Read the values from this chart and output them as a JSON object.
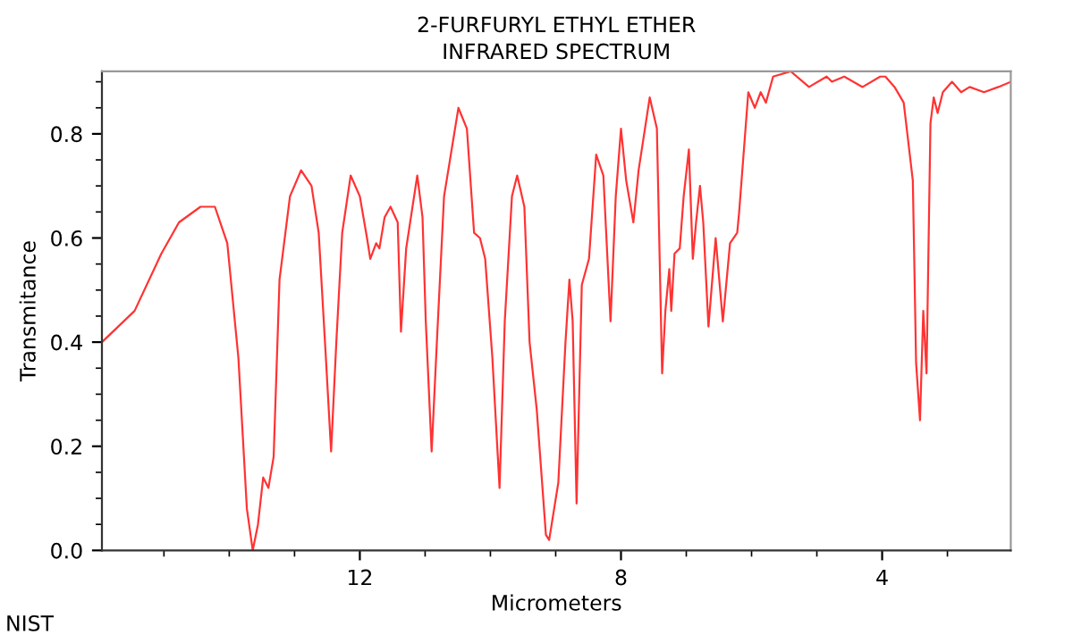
{
  "chart_data": {
    "type": "line",
    "title": "2-FURFURYL ETHYL ETHER\nINFRARED SPECTRUM",
    "xlabel": "Micrometers",
    "ylabel": "Transmitance",
    "annotations": [
      "NIST"
    ],
    "series": [
      {
        "color": "#ff3333",
        "x": [
          15.95,
          15.45,
          15.04,
          14.77,
          14.44,
          14.22,
          14.03,
          13.86,
          13.73,
          13.64,
          13.56,
          13.48,
          13.4,
          13.32,
          13.23,
          13.07,
          12.9,
          12.74,
          12.63,
          12.52,
          12.44,
          12.36,
          12.27,
          12.14,
          12.0,
          11.89,
          11.84,
          11.75,
          11.7,
          11.62,
          11.53,
          11.42,
          11.37,
          11.29,
          11.12,
          11.04,
          10.99,
          10.9,
          10.82,
          10.71,
          10.49,
          10.36,
          10.25,
          10.16,
          10.08,
          9.97,
          9.86,
          9.78,
          9.67,
          9.59,
          9.48,
          9.4,
          9.29,
          9.15,
          9.1,
          8.96,
          8.85,
          8.79,
          8.74,
          8.68,
          8.6,
          8.49,
          8.38,
          8.27,
          8.16,
          8.08,
          8.0,
          7.92,
          7.81,
          7.73,
          7.56,
          7.45,
          7.37,
          7.32,
          7.26,
          7.23,
          7.18,
          7.1,
          7.04,
          6.96,
          6.9,
          6.85,
          6.79,
          6.74,
          6.66,
          6.55,
          6.44,
          6.33,
          6.22,
          6.19,
          6.05,
          5.95,
          5.86,
          5.78,
          5.67,
          5.4,
          5.12,
          4.85,
          4.77,
          4.58,
          4.3,
          4.03,
          3.95,
          3.81,
          3.67,
          3.53,
          3.48,
          3.42,
          3.37,
          3.32,
          3.26,
          3.21,
          3.15,
          3.07,
          2.93,
          2.79,
          2.66,
          2.44,
          2.22,
          2.03
        ],
        "values": [
          0.4,
          0.46,
          0.57,
          0.63,
          0.66,
          0.66,
          0.59,
          0.37,
          0.08,
          0.0,
          0.05,
          0.14,
          0.12,
          0.18,
          0.52,
          0.68,
          0.73,
          0.7,
          0.61,
          0.37,
          0.19,
          0.4,
          0.61,
          0.72,
          0.68,
          0.6,
          0.56,
          0.59,
          0.58,
          0.64,
          0.66,
          0.63,
          0.42,
          0.58,
          0.72,
          0.64,
          0.44,
          0.19,
          0.4,
          0.68,
          0.85,
          0.81,
          0.61,
          0.6,
          0.56,
          0.37,
          0.12,
          0.44,
          0.68,
          0.72,
          0.66,
          0.4,
          0.27,
          0.03,
          0.02,
          0.13,
          0.4,
          0.52,
          0.44,
          0.09,
          0.51,
          0.56,
          0.76,
          0.72,
          0.44,
          0.68,
          0.81,
          0.71,
          0.63,
          0.73,
          0.87,
          0.81,
          0.34,
          0.46,
          0.54,
          0.46,
          0.57,
          0.58,
          0.68,
          0.77,
          0.56,
          0.63,
          0.7,
          0.63,
          0.43,
          0.6,
          0.44,
          0.59,
          0.61,
          0.65,
          0.88,
          0.85,
          0.88,
          0.86,
          0.91,
          0.92,
          0.89,
          0.91,
          0.9,
          0.91,
          0.89,
          0.91,
          0.91,
          0.89,
          0.86,
          0.71,
          0.36,
          0.25,
          0.46,
          0.34,
          0.82,
          0.87,
          0.84,
          0.88,
          0.9,
          0.88,
          0.89,
          0.88,
          0.89,
          0.9
        ]
      }
    ],
    "xlim": [
      15.95,
      2.03
    ],
    "xticks": [
      12,
      8,
      4
    ],
    "ylim": [
      0,
      0.92
    ],
    "yticks": [
      {
        "value": 0,
        "label": "0.0"
      },
      {
        "value": 0.2,
        "label": "0.2"
      },
      {
        "value": 0.4,
        "label": "0.4"
      },
      {
        "value": 0.6,
        "label": "0.6"
      },
      {
        "value": 0.8,
        "label": "0.8"
      }
    ],
    "grid": false,
    "legend": false
  }
}
